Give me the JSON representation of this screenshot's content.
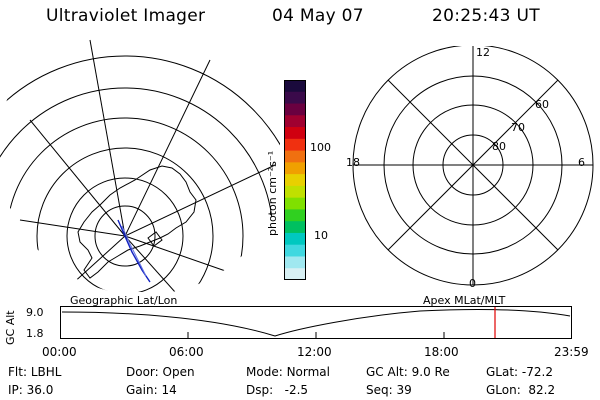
{
  "header": {
    "title": "Ultraviolet Imager",
    "date": "04 May 07",
    "time": "20:25:43 UT"
  },
  "colorbar": {
    "unit_label": "photon cm⁻²s⁻¹",
    "ticks": [
      "100",
      "10"
    ],
    "colors": [
      "#1a0a3c",
      "#3a0a4a",
      "#6a0040",
      "#a00030",
      "#d00010",
      "#f03010",
      "#f07010",
      "#f0a000",
      "#e8d000",
      "#c0e000",
      "#80e000",
      "#30d020",
      "#00c060",
      "#00c8c0",
      "#40d8e0",
      "#a0e8f0",
      "#d8f0f4"
    ]
  },
  "polar_right": {
    "clock_labels": [
      "12",
      "18",
      "6",
      "0"
    ],
    "lat_labels": [
      "60",
      "70",
      "80"
    ]
  },
  "timeline": {
    "ylabel": "GC Alt",
    "yticks": [
      "9.0",
      "1.8"
    ],
    "left_label": "Geographic Lat/Lon",
    "right_label": "Apex MLat/MLT",
    "xticks": [
      "00:00",
      "06:00",
      "12:00",
      "18:00",
      "23:59"
    ],
    "marker_color": "#e00000"
  },
  "info": {
    "row1": [
      {
        "key": "Flt:",
        "value": "LBHL"
      },
      {
        "key": "Door:",
        "value": "Open"
      },
      {
        "key": "Mode:",
        "value": "Normal"
      },
      {
        "key": "GC Alt:",
        "value": "9.0 Re"
      },
      {
        "key": "GLat:",
        "value": "-72.2"
      }
    ],
    "row2": [
      {
        "key": "IP:",
        "value": "36.0"
      },
      {
        "key": "Gain:",
        "value": "14"
      },
      {
        "key": "Dsp:",
        "value": "-2.5"
      },
      {
        "key": "Seq:",
        "value": "39"
      },
      {
        "key": "GLon:",
        "value": "82.2"
      }
    ]
  }
}
